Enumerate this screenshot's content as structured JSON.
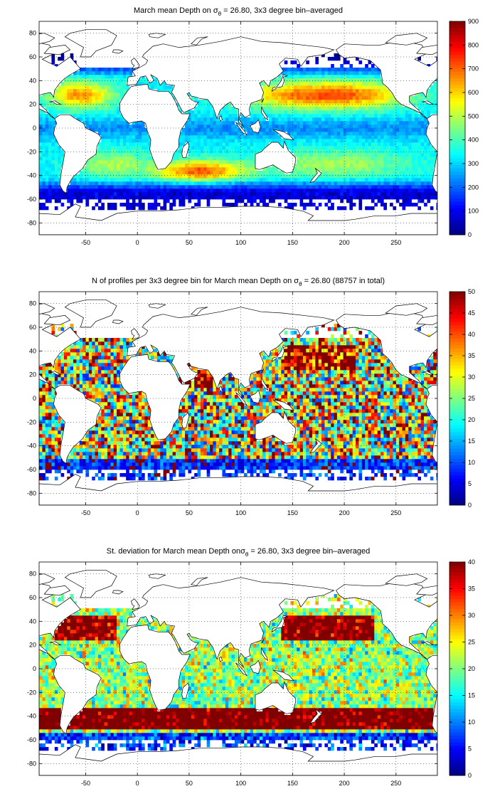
{
  "colorscale": "jet",
  "chart_data": [
    {
      "type": "heatmap",
      "title_pre": "March mean Depth on ",
      "title_sym": "σ",
      "title_sub": "θ",
      "title_post": " = 26.80, 3x3 degree bin–averaged",
      "xlim": [
        -95,
        290
      ],
      "ylim": [
        -90,
        90
      ],
      "x_ticks": [
        -50,
        0,
        50,
        100,
        150,
        200,
        250
      ],
      "y_ticks": [
        -80,
        -60,
        -40,
        -20,
        0,
        20,
        40,
        60,
        80
      ],
      "grid": "dotted",
      "colorbar_range": [
        0,
        900
      ],
      "colorbar_ticks": [
        0,
        100,
        200,
        300,
        400,
        500,
        600,
        700,
        800,
        900
      ],
      "field": "depth"
    },
    {
      "type": "heatmap",
      "title_pre": "N of profiles per 3x3 degree bin for March mean Depth on ",
      "title_sym": "σ",
      "title_sub": "θ",
      "title_post": " = 26.80 (88757 in total)",
      "xlim": [
        -95,
        290
      ],
      "ylim": [
        -90,
        90
      ],
      "x_ticks": [
        -50,
        0,
        50,
        100,
        150,
        200,
        250
      ],
      "y_ticks": [
        -80,
        -60,
        -40,
        -20,
        0,
        20,
        40,
        60,
        80
      ],
      "grid": "dotted",
      "colorbar_range": [
        0,
        50
      ],
      "colorbar_ticks": [
        0,
        5,
        10,
        15,
        20,
        25,
        30,
        35,
        40,
        45,
        50
      ],
      "field": "count"
    },
    {
      "type": "heatmap",
      "title_pre": "St. deviation for March mean Depth on",
      "title_sym": "σ",
      "title_sub": "θ",
      "title_post": " = 26.80, 3x3 degree bin–averaged",
      "xlim": [
        -95,
        290
      ],
      "ylim": [
        -90,
        90
      ],
      "x_ticks": [
        -50,
        0,
        50,
        100,
        150,
        200,
        250
      ],
      "y_ticks": [
        -80,
        -60,
        -40,
        -20,
        0,
        20,
        40,
        60,
        80
      ],
      "grid": "dotted",
      "colorbar_range": [
        0,
        40
      ],
      "colorbar_ticks": [
        0,
        5,
        10,
        15,
        20,
        25,
        30,
        35,
        40
      ],
      "field": "std"
    }
  ]
}
